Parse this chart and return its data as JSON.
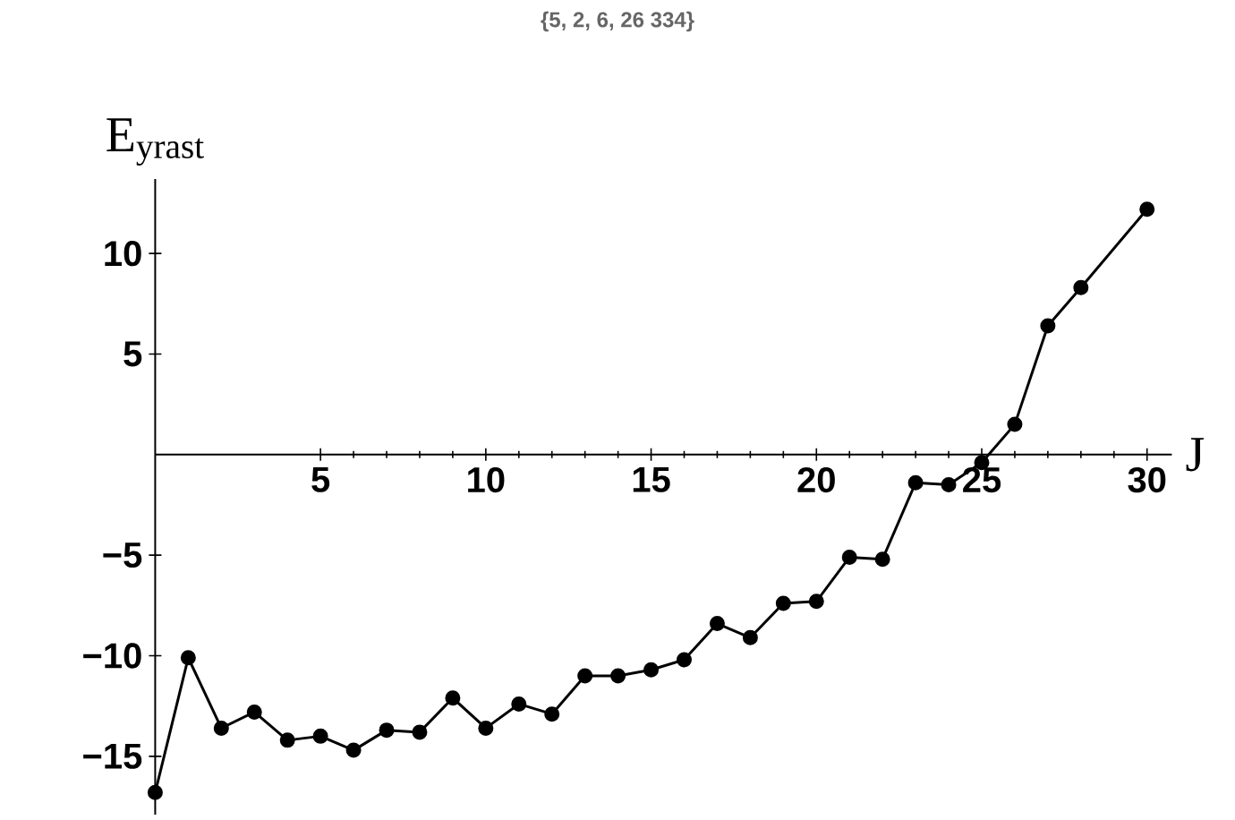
{
  "chart_data": {
    "type": "line",
    "title": "{5, 2, 6, 26 334}",
    "xlabel": "J",
    "ylabel": "E$_{yrast}$",
    "x": [
      0,
      1,
      2,
      3,
      4,
      5,
      6,
      7,
      8,
      9,
      10,
      11,
      12,
      13,
      14,
      15,
      16,
      17,
      18,
      19,
      20,
      21,
      22,
      23,
      24,
      25,
      26,
      27,
      28,
      30
    ],
    "series": [
      {
        "color": "#000000",
        "values": [
          -16.8,
          -10.1,
          -13.6,
          -12.8,
          -14.2,
          -14.0,
          -14.7,
          -13.7,
          -13.8,
          -12.1,
          -13.6,
          -12.4,
          -12.9,
          -11.0,
          -11.0,
          -10.7,
          -10.2,
          -8.4,
          -9.1,
          -7.4,
          -7.3,
          -5.1,
          -5.2,
          -1.4,
          -1.5,
          -0.4,
          1.5,
          6.4,
          8.3,
          12.2
        ]
      }
    ],
    "xlim": [
      0,
      30.75
    ],
    "ylim": [
      -17.9,
      13.7
    ],
    "xticks": [
      5,
      10,
      15,
      20,
      25,
      30
    ],
    "yticks": [
      {
        "value": -15,
        "label": "−15"
      },
      {
        "value": -10,
        "label": "−10"
      },
      {
        "value": -5,
        "label": "−5"
      },
      5,
      10
    ],
    "marker": "circle",
    "line_style": "solid",
    "grid": false
  }
}
